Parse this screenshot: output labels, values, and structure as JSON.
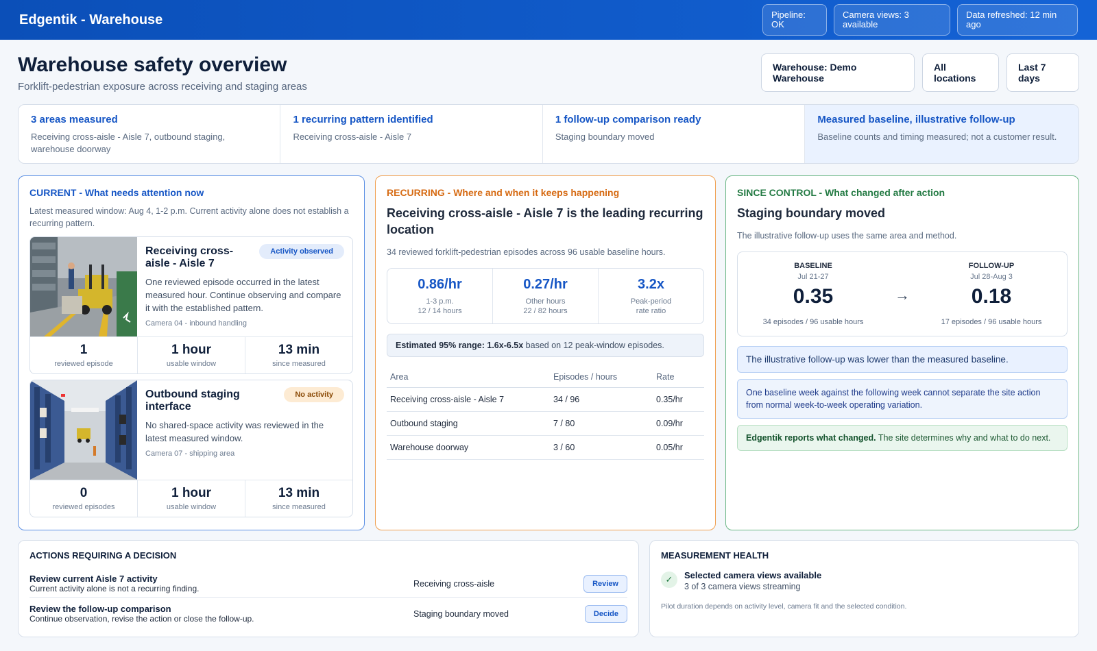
{
  "app": {
    "title": "Edgentik - Warehouse"
  },
  "status_pills": {
    "pipeline": "Pipeline: OK",
    "cameras": "Camera views: 3 available",
    "refreshed": "Data refreshed: 12 min ago"
  },
  "header": {
    "title": "Warehouse safety overview",
    "subtitle": "Forklift-pedestrian exposure across receiving and staging areas"
  },
  "filters": {
    "warehouse": "Warehouse: Demo Warehouse",
    "locations": "All locations",
    "range": "Last 7 days"
  },
  "summary": [
    {
      "title": "3 areas measured",
      "text": "Receiving cross-aisle - Aisle 7, outbound staging, warehouse doorway"
    },
    {
      "title": "1 recurring pattern identified",
      "text": "Receiving cross-aisle - Aisle 7"
    },
    {
      "title": "1 follow-up comparison ready",
      "text": "Staging boundary moved"
    },
    {
      "title": "Measured baseline, illustrative follow-up",
      "text": "Baseline counts and timing measured; not a customer result."
    }
  ],
  "current": {
    "heading": "CURRENT - What needs attention now",
    "note": "Latest measured window: Aug 4, 1-2 p.m. Current activity alone does not establish a recurring pattern.",
    "areas": [
      {
        "name": "Receiving cross-aisle - Aisle 7",
        "badge": "Activity observed",
        "desc": "One reviewed episode occurred in the latest measured hour. Continue observing and compare it with the established pattern.",
        "camera": "Camera 04 - inbound handling",
        "stats": [
          {
            "value": "1",
            "label": "reviewed episode"
          },
          {
            "value": "1 hour",
            "label": "usable window"
          },
          {
            "value": "13 min",
            "label": "since measured"
          }
        ]
      },
      {
        "name": "Outbound staging interface",
        "badge": "No activity",
        "desc": "No shared-space activity was reviewed in the latest measured window.",
        "camera": "Camera 07 - shipping area",
        "stats": [
          {
            "value": "0",
            "label": "reviewed episodes"
          },
          {
            "value": "1 hour",
            "label": "usable window"
          },
          {
            "value": "13 min",
            "label": "since measured"
          }
        ]
      }
    ]
  },
  "recurring": {
    "heading": "RECURRING - Where and when it keeps happening",
    "title": "Receiving cross-aisle - Aisle 7 is the leading recurring location",
    "note": "34 reviewed forklift-pedestrian episodes across 96 usable baseline hours.",
    "rates": [
      {
        "value": "0.86/hr",
        "label1": "1-3 p.m.",
        "label2": "12 / 14 hours"
      },
      {
        "value": "0.27/hr",
        "label1": "Other hours",
        "label2": "22 / 82 hours"
      },
      {
        "value": "3.2x",
        "label1": "Peak-period",
        "label2": "rate ratio"
      }
    ],
    "range_bold": "Estimated 95% range: 1.6x-6.5x",
    "range_rest": " based on 12 peak-window episodes.",
    "table_headers": [
      "Area",
      "Episodes / hours",
      "Rate"
    ],
    "table_rows": [
      [
        "Receiving cross-aisle - Aisle 7",
        "34 / 96",
        "0.35/hr"
      ],
      [
        "Outbound staging",
        "7 / 80",
        "0.09/hr"
      ],
      [
        "Warehouse doorway",
        "3 / 60",
        "0.05/hr"
      ]
    ]
  },
  "control": {
    "heading": "SINCE CONTROL - What changed after action",
    "title": "Staging boundary moved",
    "note": "The illustrative follow-up uses the same area and method.",
    "baseline": {
      "label": "BASELINE",
      "date": "Jul 21-27",
      "value": "0.35",
      "foot": "34 episodes / 96 usable hours"
    },
    "followup": {
      "label": "FOLLOW-UP",
      "date": "Jul 28-Aug 3",
      "value": "0.18",
      "foot": "17 episodes / 96 usable hours"
    },
    "arrow": "→",
    "note1": "The illustrative follow-up was lower than the measured baseline.",
    "note2": "One baseline week against the following week cannot separate the site action from normal week-to-week operating variation.",
    "note3_bold": "Edgentik reports what changed.",
    "note3_rest": " The site determines why and what to do next."
  },
  "actions": {
    "heading": "ACTIONS REQUIRING A DECISION",
    "rows": [
      {
        "title": "Review current Aisle 7 activity",
        "sub": "Current activity alone is not a recurring finding.",
        "area": "Receiving cross-aisle",
        "button": "Review"
      },
      {
        "title": "Review the follow-up comparison",
        "sub": "Continue observation, revise the action or close the follow-up.",
        "area": "Staging boundary moved",
        "button": "Decide"
      }
    ]
  },
  "health": {
    "heading": "MEASUREMENT HEALTH",
    "check": "✓",
    "title": "Selected camera views available",
    "sub": "3 of 3 camera views streaming",
    "foot": "Pilot duration depends on activity level, camera fit and the selected condition."
  },
  "colors": {
    "brand": "#0b4fb8",
    "current": "#5b8fe4",
    "recurring": "#f0a050",
    "control": "#6ab684"
  }
}
